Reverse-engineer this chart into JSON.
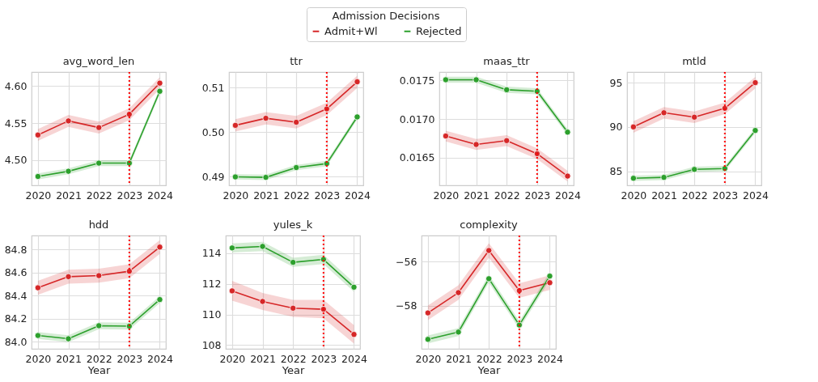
{
  "chart_data": [
    {
      "type": "line",
      "title": "avg_word_len",
      "x": [
        2020,
        2021,
        2022,
        2023,
        2024
      ],
      "xlim": [
        2019.79,
        2024.2
      ],
      "xticks": [
        2020,
        2021,
        2022,
        2023,
        2024
      ],
      "ylim": [
        4.466,
        4.619
      ],
      "yticks": [
        {
          "value": 4.5,
          "label": "4.50"
        },
        4.55,
        {
          "value": 4.6,
          "label": "4.60"
        }
      ],
      "grid": true,
      "marker": "circle",
      "legend": "top",
      "legend_title": "Admission Decisions",
      "series": [
        {
          "name": "Admit+Wl",
          "color": "#d62728",
          "values": [
            4.534,
            4.553,
            4.544,
            4.562,
            4.604
          ],
          "lower": [
            4.526,
            4.545,
            4.536,
            4.554,
            4.596
          ],
          "upper": [
            4.542,
            4.561,
            4.552,
            4.57,
            4.612
          ]
        },
        {
          "name": "Rejected",
          "color": "#2ca02c",
          "values": [
            4.478,
            4.485,
            4.496,
            4.496,
            4.593
          ],
          "lower": [
            4.474,
            4.481,
            4.492,
            4.492,
            4.589
          ],
          "upper": [
            4.482,
            4.489,
            4.5,
            4.5,
            4.597
          ]
        }
      ],
      "ref_lines": [
        {
          "axis": "x",
          "value": 2023,
          "color": "#ff0000",
          "line_style": "dotted"
        }
      ]
    },
    {
      "type": "line",
      "title": "ttr",
      "x": [
        2020,
        2021,
        2022,
        2023,
        2024
      ],
      "xlim": [
        2019.79,
        2024.2
      ],
      "xticks": [
        2020,
        2021,
        2022,
        2023,
        2024
      ],
      "ylim": [
        0.488,
        0.5135
      ],
      "yticks": [
        0.49,
        {
          "value": 0.5,
          "label": "0.50"
        },
        0.51
      ],
      "grid": true,
      "marker": "circle",
      "series": [
        {
          "name": "Admit+Wl",
          "color": "#d62728",
          "values": [
            0.5015,
            0.5031,
            0.5022,
            0.5052,
            0.5113
          ],
          "lower": [
            0.5001,
            0.5017,
            0.5008,
            0.5038,
            0.5099
          ],
          "upper": [
            0.5029,
            0.5045,
            0.5036,
            0.5066,
            0.5127
          ]
        },
        {
          "name": "Rejected",
          "color": "#2ca02c",
          "values": [
            0.4899,
            0.4898,
            0.492,
            0.4929,
            0.5034
          ],
          "lower": [
            0.4893,
            0.4892,
            0.4914,
            0.4923,
            0.5028
          ],
          "upper": [
            0.4905,
            0.4904,
            0.4926,
            0.4935,
            0.504
          ]
        }
      ],
      "ref_lines": [
        {
          "axis": "x",
          "value": 2023,
          "color": "#ff0000",
          "line_style": "dotted"
        }
      ]
    },
    {
      "type": "line",
      "title": "maas_ttr",
      "x": [
        2020,
        2021,
        2022,
        2023,
        2024
      ],
      "xlim": [
        2019.79,
        2024.2
      ],
      "xticks": [
        2020,
        2021,
        2022,
        2023,
        2024
      ],
      "ylim": [
        0.01614,
        0.01761
      ],
      "yticks": [
        0.0165,
        {
          "value": 0.017,
          "label": "0.0170"
        },
        0.0175
      ],
      "grid": true,
      "marker": "circle",
      "series": [
        {
          "name": "Admit+Wl",
          "color": "#d62728",
          "values": [
            0.01678,
            0.01667,
            0.01672,
            0.01655,
            0.01626
          ],
          "lower": [
            0.01671,
            0.0166,
            0.01665,
            0.01648,
            0.01619
          ],
          "upper": [
            0.01685,
            0.01674,
            0.01679,
            0.01662,
            0.01633
          ]
        },
        {
          "name": "Rejected",
          "color": "#2ca02c",
          "values": [
            0.01751,
            0.01751,
            0.01738,
            0.01736,
            0.01683
          ],
          "lower": [
            0.01747,
            0.01747,
            0.01734,
            0.01732,
            0.01679
          ],
          "upper": [
            0.01755,
            0.01755,
            0.01742,
            0.0174,
            0.01687
          ]
        }
      ],
      "ref_lines": [
        {
          "axis": "x",
          "value": 2023,
          "color": "#ff0000",
          "line_style": "dotted"
        }
      ]
    },
    {
      "type": "line",
      "title": "mtld",
      "x": [
        2020,
        2021,
        2022,
        2023,
        2024
      ],
      "xlim": [
        2019.79,
        2024.2
      ],
      "xticks": [
        2020,
        2021,
        2022,
        2023,
        2024
      ],
      "ylim": [
        83.4,
        96.2
      ],
      "yticks": [
        85,
        90,
        95
      ],
      "grid": true,
      "marker": "circle",
      "series": [
        {
          "name": "Admit+Wl",
          "color": "#d62728",
          "values": [
            90.0,
            91.6,
            91.1,
            92.1,
            95.0
          ],
          "lower": [
            89.35,
            90.95,
            90.45,
            91.45,
            94.35
          ],
          "upper": [
            90.65,
            92.25,
            91.75,
            92.75,
            95.65
          ]
        },
        {
          "name": "Rejected",
          "color": "#2ca02c",
          "values": [
            84.2,
            84.3,
            85.2,
            85.3,
            89.6
          ],
          "lower": [
            83.9,
            84.0,
            84.9,
            85.0,
            89.3
          ],
          "upper": [
            84.5,
            84.6,
            85.5,
            85.6,
            89.9
          ]
        }
      ],
      "ref_lines": [
        {
          "axis": "x",
          "value": 2023,
          "color": "#ff0000",
          "line_style": "dotted"
        }
      ]
    },
    {
      "type": "line",
      "title": "hdd",
      "xlabel": "Year",
      "x": [
        2020,
        2021,
        2022,
        2023,
        2024
      ],
      "xlim": [
        2019.79,
        2024.2
      ],
      "xticks": [
        2020,
        2021,
        2022,
        2023,
        2024
      ],
      "ylim": [
        83.94,
        84.92
      ],
      "yticks": [
        {
          "value": 84,
          "label": "84.0"
        },
        84.2,
        84.4,
        84.6,
        84.8
      ],
      "grid": true,
      "marker": "circle",
      "series": [
        {
          "name": "Admit+Wl",
          "color": "#d62728",
          "values": [
            84.468,
            84.564,
            84.573,
            84.611,
            84.82
          ],
          "lower": [
            84.408,
            84.504,
            84.513,
            84.551,
            84.76
          ],
          "upper": [
            84.528,
            84.624,
            84.633,
            84.671,
            84.88
          ]
        },
        {
          "name": "Rejected",
          "color": "#2ca02c",
          "values": [
            84.055,
            84.027,
            84.14,
            84.136,
            84.366
          ],
          "lower": [
            84.025,
            83.997,
            84.11,
            84.106,
            84.336
          ],
          "upper": [
            84.085,
            84.057,
            84.17,
            84.166,
            84.396
          ]
        }
      ],
      "ref_lines": [
        {
          "axis": "x",
          "value": 2023,
          "color": "#ff0000",
          "line_style": "dotted"
        }
      ]
    },
    {
      "type": "line",
      "title": "yules_k",
      "xlabel": "Year",
      "x": [
        2020,
        2021,
        2022,
        2023,
        2024
      ],
      "xlim": [
        2019.79,
        2024.2
      ],
      "xticks": [
        2020,
        2021,
        2022,
        2023,
        2024
      ],
      "ylim": [
        107.76,
        115.15
      ],
      "yticks": [
        108,
        110,
        112,
        114
      ],
      "grid": true,
      "marker": "circle",
      "series": [
        {
          "name": "Admit+Wl",
          "color": "#d62728",
          "values": [
            111.54,
            110.85,
            110.41,
            110.34,
            108.7
          ],
          "lower": [
            110.9,
            110.3,
            109.85,
            109.75,
            108.1
          ],
          "upper": [
            112.2,
            111.4,
            110.95,
            110.95,
            109.3
          ]
        },
        {
          "name": "Rejected",
          "color": "#2ca02c",
          "values": [
            114.34,
            114.44,
            113.4,
            113.59,
            111.78
          ],
          "lower": [
            114.04,
            114.14,
            113.1,
            113.29,
            111.48
          ],
          "upper": [
            114.64,
            114.74,
            113.7,
            113.89,
            112.08
          ]
        }
      ],
      "ref_lines": [
        {
          "axis": "x",
          "value": 2023,
          "color": "#ff0000",
          "line_style": "dotted"
        }
      ]
    },
    {
      "type": "line",
      "title": "complexity",
      "xlabel": "Year",
      "x": [
        2020,
        2021,
        2022,
        2023,
        2024
      ],
      "xlim": [
        2019.79,
        2024.2
      ],
      "xticks": [
        2020,
        2021,
        2022,
        2023,
        2024
      ],
      "ylim": [
        -59.95,
        -54.81
      ],
      "yticks": [
        {
          "value": -58,
          "label": "−58"
        },
        {
          "value": -56,
          "label": "−56"
        }
      ],
      "grid": true,
      "marker": "circle",
      "series": [
        {
          "name": "Admit+Wl",
          "color": "#d62728",
          "values": [
            -58.32,
            -57.4,
            -55.49,
            -57.31,
            -56.95
          ],
          "lower": [
            -58.65,
            -57.73,
            -55.82,
            -57.64,
            -57.28
          ],
          "upper": [
            -57.99,
            -57.07,
            -55.16,
            -56.98,
            -56.62
          ]
        },
        {
          "name": "Rejected",
          "color": "#2ca02c",
          "values": [
            -59.52,
            -59.19,
            -56.77,
            -58.87,
            -56.65
          ],
          "lower": [
            -59.7,
            -59.37,
            -56.95,
            -59.05,
            -56.83
          ],
          "upper": [
            -59.34,
            -59.01,
            -56.59,
            -58.69,
            -56.47
          ]
        }
      ],
      "ref_lines": [
        {
          "axis": "x",
          "value": 2023,
          "color": "#ff0000",
          "line_style": "dotted"
        }
      ]
    }
  ]
}
